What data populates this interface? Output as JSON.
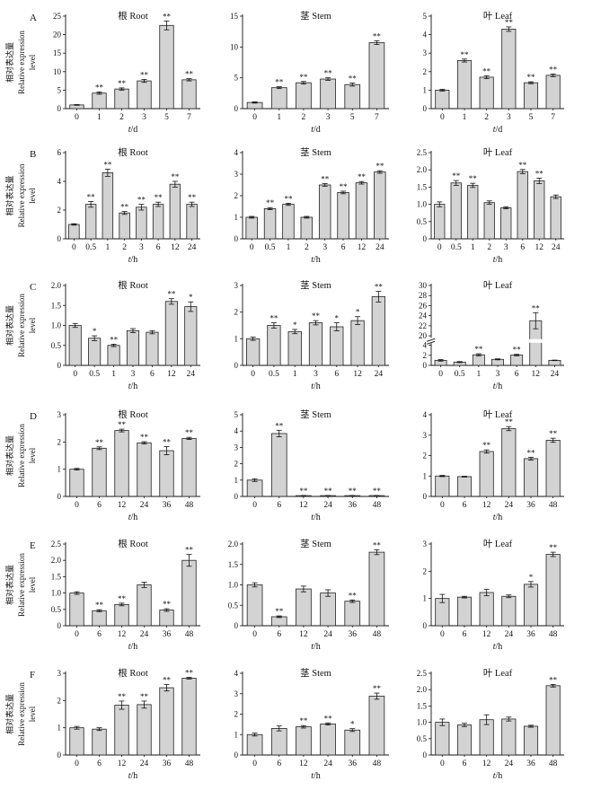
{
  "figure": {
    "ylabel_cn": "相对表达量",
    "ylabel_en1": "Relative expression",
    "ylabel_en2": "level",
    "bar_color": "#d3d3d3",
    "edge_color": "#222222"
  },
  "chart_data": [
    {
      "type": "bar",
      "row": 0,
      "col": 0,
      "panel_letter": "A",
      "title": "根 Root",
      "xlabel_var": "t",
      "xlabel_unit": "/d",
      "categories": [
        "0",
        "1",
        "2",
        "3",
        "5",
        "7"
      ],
      "values": [
        1.0,
        4.2,
        5.3,
        7.5,
        22.5,
        7.8
      ],
      "errors": [
        0.1,
        0.3,
        0.3,
        0.4,
        1.2,
        0.3
      ],
      "sig": [
        "",
        "**",
        "**",
        "**",
        "**",
        "**"
      ],
      "ylim": [
        0,
        25
      ],
      "yticks": [
        0,
        5,
        10,
        15,
        20,
        25
      ]
    },
    {
      "type": "bar",
      "row": 0,
      "col": 1,
      "title": "茎 Stem",
      "xlabel_var": "t",
      "xlabel_unit": "/d",
      "categories": [
        "0",
        "1",
        "2",
        "3",
        "5",
        "7"
      ],
      "values": [
        1.0,
        3.4,
        4.2,
        4.8,
        3.9,
        10.7
      ],
      "errors": [
        0.1,
        0.15,
        0.2,
        0.2,
        0.25,
        0.3
      ],
      "sig": [
        "",
        "**",
        "**",
        "**",
        "**",
        "**"
      ],
      "ylim": [
        0,
        15
      ],
      "yticks": [
        0,
        5,
        10,
        15
      ]
    },
    {
      "type": "bar",
      "row": 0,
      "col": 2,
      "title": "叶 Leaf",
      "xlabel_var": "t",
      "xlabel_unit": "/d",
      "categories": [
        "0",
        "1",
        "2",
        "3",
        "5",
        "7"
      ],
      "values": [
        1.0,
        2.6,
        1.7,
        4.3,
        1.4,
        1.8
      ],
      "errors": [
        0.05,
        0.08,
        0.08,
        0.12,
        0.05,
        0.07
      ],
      "sig": [
        "",
        "**",
        "**",
        "**",
        "**",
        "**"
      ],
      "ylim": [
        0,
        5
      ],
      "yticks": [
        0,
        1,
        2,
        3,
        4,
        5
      ]
    },
    {
      "type": "bar",
      "row": 1,
      "col": 0,
      "panel_letter": "B",
      "title": "根 Root",
      "xlabel_var": "t",
      "xlabel_unit": "/h",
      "categories": [
        "0",
        "0.5",
        "1",
        "2",
        "3",
        "6",
        "12",
        "24"
      ],
      "values": [
        1.0,
        2.4,
        4.6,
        1.8,
        2.2,
        2.4,
        3.8,
        2.4
      ],
      "errors": [
        0.05,
        0.2,
        0.25,
        0.1,
        0.2,
        0.15,
        0.2,
        0.15
      ],
      "sig": [
        "",
        "**",
        "**",
        "**",
        "**",
        "**",
        "**",
        "**"
      ],
      "ylim": [
        0,
        6
      ],
      "yticks": [
        0,
        2,
        4,
        6
      ]
    },
    {
      "type": "bar",
      "row": 1,
      "col": 1,
      "title": "茎 Stem",
      "xlabel_var": "t",
      "xlabel_unit": "/h",
      "categories": [
        "0",
        "0.5",
        "1",
        "2",
        "3",
        "6",
        "12",
        "24"
      ],
      "values": [
        1.0,
        1.4,
        1.6,
        1.0,
        2.5,
        2.15,
        2.6,
        3.1
      ],
      "errors": [
        0.04,
        0.05,
        0.05,
        0.04,
        0.06,
        0.06,
        0.06,
        0.06
      ],
      "sig": [
        "",
        "**",
        "**",
        "",
        "**",
        "**",
        "**",
        "**"
      ],
      "ylim": [
        0,
        4
      ],
      "yticks": [
        0,
        1,
        2,
        3,
        4
      ]
    },
    {
      "type": "bar",
      "row": 1,
      "col": 2,
      "title": "叶 Leaf",
      "xlabel_var": "t",
      "xlabel_unit": "/h",
      "categories": [
        "0",
        "0.5",
        "1",
        "2",
        "3",
        "6",
        "12",
        "24"
      ],
      "values": [
        1.0,
        1.62,
        1.55,
        1.05,
        0.9,
        1.95,
        1.68,
        1.22
      ],
      "errors": [
        0.07,
        0.07,
        0.06,
        0.05,
        0.03,
        0.06,
        0.08,
        0.05
      ],
      "sig": [
        "",
        "**",
        "**",
        "",
        "",
        "**",
        "**",
        ""
      ],
      "ylim": [
        0,
        2.5
      ],
      "yticks": [
        0,
        0.5,
        1.0,
        1.5,
        2.0,
        2.5
      ],
      "ytick_labels": [
        "0",
        "0.5",
        "1.0",
        "1.5",
        "2.0",
        "2.5"
      ]
    },
    {
      "type": "bar",
      "row": 2,
      "col": 0,
      "panel_letter": "C",
      "title": "根 Root",
      "xlabel_var": "t",
      "xlabel_unit": "/h",
      "categories": [
        "0",
        "0.5",
        "1",
        "3",
        "6",
        "12",
        "24"
      ],
      "values": [
        1.0,
        0.68,
        0.5,
        0.87,
        0.83,
        1.6,
        1.47
      ],
      "errors": [
        0.05,
        0.06,
        0.03,
        0.05,
        0.04,
        0.07,
        0.12
      ],
      "sig": [
        "",
        "*",
        "**",
        "",
        "",
        "**",
        "*"
      ],
      "ylim": [
        0,
        2.0
      ],
      "yticks": [
        0,
        0.5,
        1.0,
        1.5,
        2.0
      ],
      "ytick_labels": [
        "0",
        "0.5",
        "1.0",
        "1.5",
        "2.0"
      ]
    },
    {
      "type": "bar",
      "row": 2,
      "col": 1,
      "title": "茎 Stem",
      "xlabel_var": "t",
      "xlabel_unit": "/h",
      "categories": [
        "0",
        "0.5",
        "1",
        "3",
        "6",
        "12",
        "24"
      ],
      "values": [
        1.0,
        1.5,
        1.27,
        1.6,
        1.45,
        1.68,
        2.58
      ],
      "errors": [
        0.06,
        0.1,
        0.08,
        0.08,
        0.15,
        0.15,
        0.2
      ],
      "sig": [
        "",
        "**",
        "*",
        "**",
        "*",
        "*",
        "**"
      ],
      "ylim": [
        0,
        3
      ],
      "yticks": [
        0,
        1,
        2,
        3
      ]
    },
    {
      "type": "bar",
      "row": 2,
      "col": 2,
      "title": "叶 Leaf",
      "xlabel_var": "t",
      "xlabel_unit": "/h",
      "categories": [
        "0",
        "0.5",
        "1",
        "3",
        "6",
        "12",
        "24"
      ],
      "values": [
        1.0,
        0.65,
        2.1,
        1.2,
        2.05,
        23.0,
        1.0
      ],
      "errors": [
        0.15,
        0.1,
        0.2,
        0.1,
        0.15,
        1.6,
        0.05
      ],
      "sig": [
        "",
        "",
        "**",
        "",
        "**",
        "**",
        ""
      ],
      "ylim": [
        0,
        30
      ],
      "yticks": [
        0,
        2,
        4,
        20,
        22,
        24,
        26,
        28,
        30
      ],
      "axis_break": {
        "from": 4.4,
        "to": 19.6
      }
    },
    {
      "type": "bar",
      "row": 3,
      "col": 0,
      "panel_letter": "D",
      "title": "根 Root",
      "xlabel_var": "t",
      "xlabel_unit": "/h",
      "categories": [
        "0",
        "6",
        "12",
        "24",
        "36",
        "48"
      ],
      "values": [
        1.0,
        1.77,
        2.42,
        1.97,
        1.68,
        2.13
      ],
      "errors": [
        0.03,
        0.05,
        0.05,
        0.04,
        0.15,
        0.04
      ],
      "sig": [
        "",
        "**",
        "**",
        "**",
        "**",
        "**"
      ],
      "ylim": [
        0,
        3
      ],
      "yticks": [
        0,
        1,
        2,
        3
      ]
    },
    {
      "type": "bar",
      "row": 3,
      "col": 1,
      "title": "茎 Stem",
      "xlabel_var": "t",
      "xlabel_unit": "/h",
      "categories": [
        "0",
        "6",
        "12",
        "24",
        "36",
        "48"
      ],
      "values": [
        1.0,
        3.85,
        0.05,
        0.05,
        0.05,
        0.05
      ],
      "errors": [
        0.08,
        0.2,
        0.01,
        0.01,
        0.01,
        0.01
      ],
      "sig": [
        "",
        "**",
        "**",
        "**",
        "**",
        "**"
      ],
      "ylim": [
        0,
        5
      ],
      "yticks": [
        0,
        1,
        2,
        3,
        4,
        5
      ]
    },
    {
      "type": "bar",
      "row": 3,
      "col": 2,
      "title": "叶 Leaf",
      "xlabel_var": "t",
      "xlabel_unit": "/h",
      "categories": [
        "0",
        "6",
        "12",
        "24",
        "36",
        "48"
      ],
      "values": [
        1.0,
        0.97,
        2.2,
        3.32,
        1.85,
        2.75
      ],
      "errors": [
        0.03,
        0.02,
        0.08,
        0.1,
        0.07,
        0.1
      ],
      "sig": [
        "",
        "",
        "**",
        "**",
        "**",
        "**"
      ],
      "ylim": [
        0,
        4
      ],
      "yticks": [
        0,
        1,
        2,
        3,
        4
      ]
    },
    {
      "type": "bar",
      "row": 4,
      "col": 0,
      "panel_letter": "E",
      "title": "根 Root",
      "xlabel_var": "t",
      "xlabel_unit": "/h",
      "categories": [
        "0",
        "6",
        "12",
        "24",
        "36",
        "48"
      ],
      "values": [
        1.0,
        0.46,
        0.65,
        1.25,
        0.48,
        2.0
      ],
      "errors": [
        0.04,
        0.03,
        0.04,
        0.08,
        0.04,
        0.18
      ],
      "sig": [
        "",
        "**",
        "**",
        "",
        "**",
        "**"
      ],
      "ylim": [
        0,
        2.5
      ],
      "yticks": [
        0,
        0.5,
        1.0,
        1.5,
        2.0,
        2.5
      ],
      "ytick_labels": [
        "0",
        "0.5",
        "1.0",
        "1.5",
        "2.0",
        "2.5"
      ]
    },
    {
      "type": "bar",
      "row": 4,
      "col": 1,
      "title": "茎 Stem",
      "xlabel_var": "t",
      "xlabel_unit": "/h",
      "categories": [
        "0",
        "6",
        "12",
        "24",
        "36",
        "48"
      ],
      "values": [
        1.0,
        0.22,
        0.9,
        0.8,
        0.6,
        1.8
      ],
      "errors": [
        0.05,
        0.02,
        0.07,
        0.08,
        0.03,
        0.06
      ],
      "sig": [
        "",
        "**",
        "",
        "",
        "**",
        "**"
      ],
      "ylim": [
        0,
        2.0
      ],
      "yticks": [
        0,
        0.5,
        1.0,
        1.5,
        2.0
      ],
      "ytick_labels": [
        "0",
        "0.5",
        "1.0",
        "1.5",
        "2.0"
      ]
    },
    {
      "type": "bar",
      "row": 4,
      "col": 2,
      "title": "叶 Leaf",
      "xlabel_var": "t",
      "xlabel_unit": "/h",
      "categories": [
        "0",
        "6",
        "12",
        "24",
        "36",
        "48"
      ],
      "values": [
        1.0,
        1.05,
        1.22,
        1.08,
        1.52,
        2.62
      ],
      "errors": [
        0.15,
        0.03,
        0.12,
        0.05,
        0.1,
        0.08
      ],
      "sig": [
        "",
        "",
        "",
        "",
        "*",
        "**"
      ],
      "ylim": [
        0,
        3
      ],
      "yticks": [
        0,
        1,
        2,
        3
      ]
    },
    {
      "type": "bar",
      "row": 5,
      "col": 0,
      "panel_letter": "F",
      "title": "根 Root",
      "xlabel_var": "t",
      "xlabel_unit": "/h",
      "categories": [
        "0",
        "6",
        "12",
        "24",
        "36",
        "48"
      ],
      "values": [
        1.0,
        0.95,
        1.83,
        1.85,
        2.47,
        2.82
      ],
      "errors": [
        0.05,
        0.05,
        0.15,
        0.13,
        0.12,
        0.03
      ],
      "sig": [
        "",
        "",
        "**",
        "**",
        "**",
        "**"
      ],
      "ylim": [
        0,
        3
      ],
      "yticks": [
        0,
        1,
        2,
        3
      ]
    },
    {
      "type": "bar",
      "row": 5,
      "col": 1,
      "title": "茎 Stem",
      "xlabel_var": "t",
      "xlabel_unit": "/h",
      "categories": [
        "0",
        "6",
        "12",
        "24",
        "36",
        "48"
      ],
      "values": [
        1.0,
        1.3,
        1.38,
        1.52,
        1.22,
        2.88
      ],
      "errors": [
        0.07,
        0.12,
        0.06,
        0.05,
        0.07,
        0.15
      ],
      "sig": [
        "",
        "",
        "**",
        "**",
        "*",
        "**"
      ],
      "ylim": [
        0,
        4
      ],
      "yticks": [
        0,
        1,
        2,
        3,
        4
      ]
    },
    {
      "type": "bar",
      "row": 5,
      "col": 2,
      "title": "叶 Leaf",
      "xlabel_var": "t",
      "xlabel_unit": "/h",
      "categories": [
        "0",
        "6",
        "12",
        "24",
        "36",
        "48"
      ],
      "values": [
        1.0,
        0.92,
        1.08,
        1.1,
        0.88,
        2.12
      ],
      "errors": [
        0.1,
        0.05,
        0.15,
        0.06,
        0.03,
        0.04
      ],
      "sig": [
        "",
        "",
        "",
        "",
        "",
        "**"
      ],
      "ylim": [
        0,
        2.5
      ],
      "yticks": [
        0,
        0.5,
        1.0,
        1.5,
        2.0,
        2.5
      ],
      "ytick_labels": [
        "0",
        "0.5",
        "1.0",
        "1.5",
        "2.0",
        "2.5"
      ]
    }
  ]
}
